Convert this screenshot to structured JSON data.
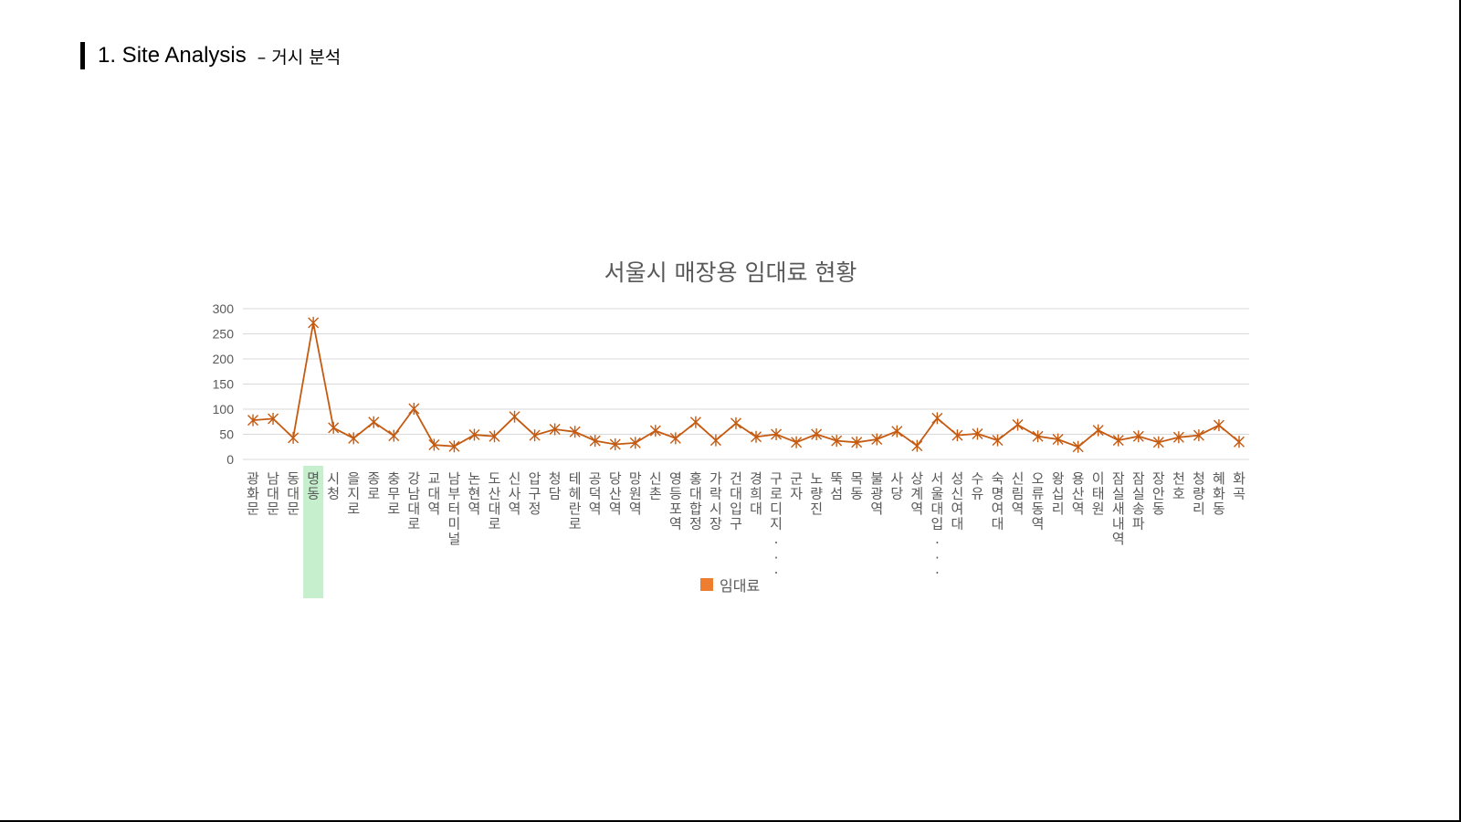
{
  "header": {
    "title": "1. Site Analysis",
    "subtitle": "– 거시 분석"
  },
  "colors": {
    "series": "#C55A11",
    "legend_swatch": "#ED7D31",
    "highlight": "#C6EFCE",
    "grid": "#D9D9D9",
    "text": "#595959"
  },
  "chart_data": {
    "type": "line",
    "title": "서울시 매장용 임대료 현황",
    "xlabel": "",
    "ylabel": "",
    "ylim": [
      0,
      300
    ],
    "yticks": [
      0,
      50,
      100,
      150,
      200,
      250,
      300
    ],
    "grid": true,
    "legend_position": "bottom",
    "highlighted_category": "명동",
    "categories": [
      "광화문",
      "남대문",
      "동대문",
      "명동",
      "시청",
      "을지로",
      "종로",
      "충무로",
      "강남대로",
      "교대역",
      "남부터미널",
      "논현역",
      "도산대로",
      "신사역",
      "압구정",
      "청담",
      "테헤란로",
      "공덕역",
      "당산역",
      "망원역",
      "신촌",
      "영등포역",
      "홍대합정",
      "가락시장",
      "건대입구",
      "경희대",
      "구로디지...",
      "군자",
      "노량진",
      "뚝섬",
      "목동",
      "불광역",
      "사당",
      "상계역",
      "서울대입...",
      "성신여대",
      "수유",
      "숙명여대",
      "신림역",
      "오류동역",
      "왕십리",
      "용산역",
      "이태원",
      "잠실새내역",
      "잠실송파",
      "장안동",
      "천호",
      "청량리",
      "혜화동",
      "화곡"
    ],
    "series": [
      {
        "name": "임대료",
        "marker": "star",
        "values": [
          78,
          81,
          43,
          272,
          63,
          42,
          74,
          47,
          101,
          29,
          26,
          49,
          46,
          85,
          48,
          60,
          55,
          37,
          30,
          33,
          57,
          42,
          74,
          38,
          72,
          45,
          50,
          34,
          50,
          37,
          34,
          40,
          56,
          27,
          82,
          48,
          51,
          38,
          69,
          46,
          40,
          25,
          58,
          38,
          46,
          34,
          44,
          48,
          68,
          35
        ]
      }
    ]
  }
}
